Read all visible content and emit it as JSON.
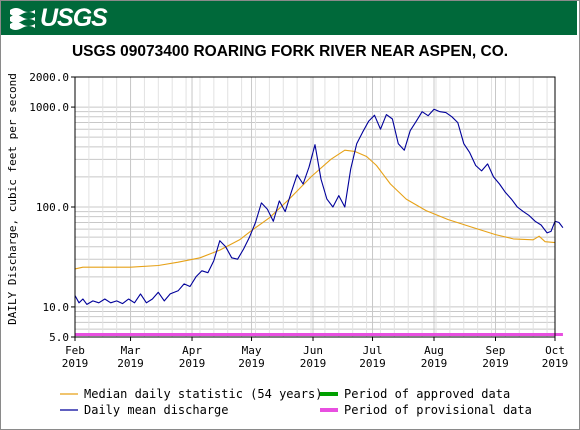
{
  "banner": {
    "logo_text": "USGS"
  },
  "colors": {
    "banner": "#00693a",
    "median": "#e6a117",
    "daily": "#00009a",
    "approved": "#00a000",
    "provisional": "#e84fe0",
    "grid": "#c8c8c8"
  },
  "chart_data": {
    "type": "line",
    "title": "USGS 09073400 ROARING FORK RIVER NEAR ASPEN, CO.",
    "ylabel": "DAILY Discharge, cubic feet per second",
    "y_scale": "log",
    "ylim": [
      5,
      2000
    ],
    "y_ticks": [
      {
        "value": 2000,
        "label": "2000.0"
      },
      {
        "value": 1000,
        "label": "1000.0"
      },
      {
        "value": 100,
        "label": "100.0"
      },
      {
        "value": 10,
        "label": "10.0"
      },
      {
        "value": 5,
        "label": "5.0"
      }
    ],
    "xlim": [
      "2019-02-01",
      "2019-10-01"
    ],
    "x_ticks": [
      {
        "date": "2019-02-01",
        "month": "Feb",
        "year": "2019"
      },
      {
        "date": "2019-03-01",
        "month": "Mar",
        "year": "2019"
      },
      {
        "date": "2019-04-01",
        "month": "Apr",
        "year": "2019"
      },
      {
        "date": "2019-05-01",
        "month": "May",
        "year": "2019"
      },
      {
        "date": "2019-06-01",
        "month": "Jun",
        "year": "2019"
      },
      {
        "date": "2019-07-01",
        "month": "Jul",
        "year": "2019"
      },
      {
        "date": "2019-08-01",
        "month": "Aug",
        "year": "2019"
      },
      {
        "date": "2019-09-01",
        "month": "Sep",
        "year": "2019"
      },
      {
        "date": "2019-10-01",
        "month": "Oct",
        "year": "2019"
      }
    ],
    "grid": true,
    "series": [
      {
        "name": "Median daily statistic (54 years)",
        "color": "#e6a117",
        "points": [
          [
            "2019-02-01",
            24
          ],
          [
            "2019-02-05",
            25
          ],
          [
            "2019-02-15",
            25
          ],
          [
            "2019-03-01",
            25
          ],
          [
            "2019-03-15",
            26
          ],
          [
            "2019-03-25",
            28
          ],
          [
            "2019-04-05",
            31
          ],
          [
            "2019-04-15",
            37
          ],
          [
            "2019-04-25",
            47
          ],
          [
            "2019-05-01",
            58
          ],
          [
            "2019-05-10",
            78
          ],
          [
            "2019-05-20",
            120
          ],
          [
            "2019-05-31",
            200
          ],
          [
            "2019-06-10",
            300
          ],
          [
            "2019-06-17",
            370
          ],
          [
            "2019-06-22",
            360
          ],
          [
            "2019-06-28",
            320
          ],
          [
            "2019-07-03",
            260
          ],
          [
            "2019-07-10",
            170
          ],
          [
            "2019-07-18",
            120
          ],
          [
            "2019-07-28",
            92
          ],
          [
            "2019-08-08",
            75
          ],
          [
            "2019-08-20",
            63
          ],
          [
            "2019-09-01",
            53
          ],
          [
            "2019-09-10",
            48
          ],
          [
            "2019-09-20",
            47
          ],
          [
            "2019-09-23",
            51
          ],
          [
            "2019-09-26",
            45
          ],
          [
            "2019-10-01",
            44
          ]
        ]
      },
      {
        "name": "Daily mean discharge",
        "color": "#00009a",
        "points": [
          [
            "2019-02-01",
            13
          ],
          [
            "2019-02-03",
            11
          ],
          [
            "2019-02-05",
            12
          ],
          [
            "2019-02-07",
            10.6
          ],
          [
            "2019-02-10",
            11.5
          ],
          [
            "2019-02-13",
            11
          ],
          [
            "2019-02-16",
            12
          ],
          [
            "2019-02-19",
            11
          ],
          [
            "2019-02-22",
            11.5
          ],
          [
            "2019-02-25",
            10.8
          ],
          [
            "2019-02-28",
            12
          ],
          [
            "2019-03-03",
            11
          ],
          [
            "2019-03-06",
            13.5
          ],
          [
            "2019-03-09",
            11
          ],
          [
            "2019-03-12",
            12
          ],
          [
            "2019-03-15",
            14
          ],
          [
            "2019-03-18",
            11.5
          ],
          [
            "2019-03-21",
            13.5
          ],
          [
            "2019-03-25",
            14.5
          ],
          [
            "2019-03-28",
            17
          ],
          [
            "2019-03-31",
            16
          ],
          [
            "2019-04-03",
            20
          ],
          [
            "2019-04-06",
            23
          ],
          [
            "2019-04-09",
            22
          ],
          [
            "2019-04-12",
            29
          ],
          [
            "2019-04-15",
            46
          ],
          [
            "2019-04-18",
            40
          ],
          [
            "2019-04-21",
            31
          ],
          [
            "2019-04-24",
            30
          ],
          [
            "2019-04-27",
            38
          ],
          [
            "2019-04-30",
            50
          ],
          [
            "2019-05-03",
            70
          ],
          [
            "2019-05-06",
            110
          ],
          [
            "2019-05-09",
            95
          ],
          [
            "2019-05-12",
            72
          ],
          [
            "2019-05-15",
            115
          ],
          [
            "2019-05-18",
            90
          ],
          [
            "2019-05-21",
            140
          ],
          [
            "2019-05-24",
            210
          ],
          [
            "2019-05-27",
            170
          ],
          [
            "2019-05-30",
            250
          ],
          [
            "2019-06-02",
            420
          ],
          [
            "2019-06-05",
            190
          ],
          [
            "2019-06-08",
            120
          ],
          [
            "2019-06-11",
            100
          ],
          [
            "2019-06-14",
            130
          ],
          [
            "2019-06-17",
            100
          ],
          [
            "2019-06-20",
            240
          ],
          [
            "2019-06-23",
            430
          ],
          [
            "2019-06-26",
            560
          ],
          [
            "2019-06-29",
            720
          ],
          [
            "2019-07-02",
            830
          ],
          [
            "2019-07-05",
            600
          ],
          [
            "2019-07-08",
            840
          ],
          [
            "2019-07-11",
            760
          ],
          [
            "2019-07-14",
            430
          ],
          [
            "2019-07-17",
            370
          ],
          [
            "2019-07-20",
            580
          ],
          [
            "2019-07-23",
            720
          ],
          [
            "2019-07-26",
            900
          ],
          [
            "2019-07-29",
            820
          ],
          [
            "2019-08-01",
            950
          ],
          [
            "2019-08-04",
            900
          ],
          [
            "2019-08-07",
            880
          ],
          [
            "2019-08-10",
            800
          ],
          [
            "2019-08-13",
            700
          ],
          [
            "2019-08-16",
            430
          ],
          [
            "2019-08-19",
            350
          ],
          [
            "2019-08-22",
            260
          ],
          [
            "2019-08-25",
            230
          ],
          [
            "2019-08-28",
            270
          ],
          [
            "2019-08-31",
            200
          ],
          [
            "2019-09-03",
            170
          ],
          [
            "2019-09-06",
            140
          ],
          [
            "2019-09-09",
            120
          ],
          [
            "2019-09-12",
            100
          ],
          [
            "2019-09-15",
            90
          ],
          [
            "2019-09-18",
            82
          ],
          [
            "2019-09-21",
            72
          ],
          [
            "2019-09-24",
            66
          ],
          [
            "2019-09-27",
            55
          ],
          [
            "2019-09-29",
            57
          ],
          [
            "2019-10-01",
            72
          ],
          [
            "2019-10-03",
            70
          ],
          [
            "2019-10-05",
            62
          ]
        ]
      }
    ],
    "periods": [
      {
        "name": "Period of approved data",
        "color": "#00a000",
        "start": null,
        "end": null
      },
      {
        "name": "Period of provisional data",
        "color": "#e84fe0",
        "start": "2019-02-01",
        "end": "2019-10-05"
      }
    ],
    "legend": [
      {
        "label": "Median daily statistic (54 years)",
        "color": "#e6a117"
      },
      {
        "label": "Period of approved data",
        "color": "#00a000"
      },
      {
        "label": "Daily mean discharge",
        "color": "#00009a"
      },
      {
        "label": "Period of provisional data",
        "color": "#e84fe0"
      }
    ],
    "legend_position": "bottom"
  }
}
